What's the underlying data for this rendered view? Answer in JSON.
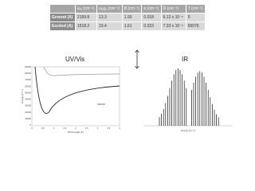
{
  "table": {
    "header": [
      "ωₑ (cm⁻¹)",
      "ωₑχₑ (cm⁻¹)",
      "B (cm⁻¹)",
      "α (cm⁻¹)",
      "D (cm⁻¹)",
      "T (cm⁻¹)"
    ],
    "rows": [
      [
        "Ground (X)",
        "2169.8",
        "13.3",
        "1.93",
        "0.018",
        "6.12 x 10⁻⁶",
        "0"
      ],
      [
        "Excited (A)",
        "1518.2",
        "19.4",
        "1.61",
        "0.023",
        "7.33 x 10⁻⁶",
        "65076"
      ]
    ]
  },
  "labels": {
    "uvvis": "UV/Vis",
    "ir": "IR"
  },
  "uv_plot": {
    "ylabel": "Energy (cm⁻¹)",
    "xlabel": "Bond length (Å)",
    "yticks": [
      "90000",
      "80000",
      "70000",
      "60000",
      "50000",
      "40000",
      "30000",
      "20000",
      "10000",
      "0"
    ],
    "xticks": [
      "0",
      "0.5",
      "1",
      "1.5",
      "2",
      "2.5",
      "3",
      "3.5",
      "4"
    ]
  },
  "ir_plot": {
    "xlabel": "Energy (cm⁻¹)"
  }
}
